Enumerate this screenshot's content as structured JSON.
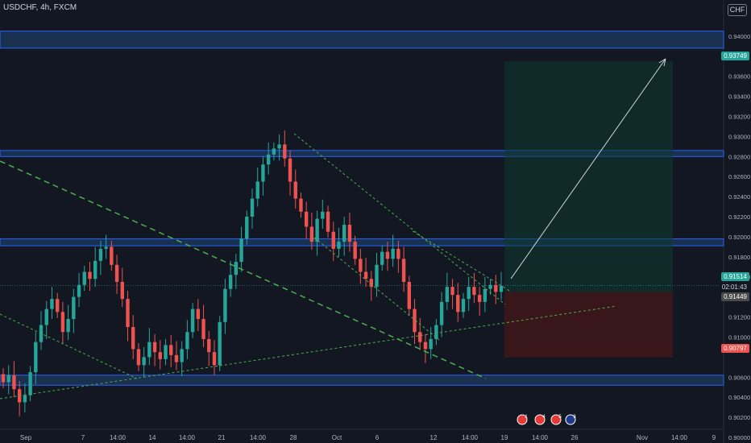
{
  "header": {
    "symbol_line": "USDCHF, 4h, FXCM",
    "currency_button": "CHF"
  },
  "colors": {
    "background": "#131722",
    "up": "#26a69a",
    "down": "#ef5350",
    "zone_fill": "#1e3a5f",
    "zone_border": "#2962ff",
    "trend": "#4caf50",
    "target": "#26a69a",
    "stop": "#ef5350"
  },
  "price_badges": {
    "target": "0.93749",
    "current": "0.91514",
    "countdown": "02:01:43",
    "entry": "0.91449",
    "stop": "0.90797"
  },
  "events": [
    {
      "icon": "flag-ch-icon",
      "count": "1"
    },
    {
      "icon": "flag-ch-icon",
      "count": "4"
    },
    {
      "icon": "flag-ch-icon",
      "count": "5"
    },
    {
      "icon": "flag-us-icon",
      "count": "3"
    }
  ],
  "chart_data": {
    "type": "candlestick",
    "symbol": "USDCHF",
    "timeframe": "4h",
    "source": "FXCM",
    "ylim": [
      0.9,
      0.9428
    ],
    "y_ticks": [
      "0.94000",
      "0.93600",
      "0.93400",
      "0.93200",
      "0.93000",
      "0.92800",
      "0.92600",
      "0.92400",
      "0.92200",
      "0.92000",
      "0.91800",
      "0.91600",
      "0.91200",
      "0.91000",
      "0.90600",
      "0.90400",
      "0.90200",
      "0.90000"
    ],
    "x_ticks": [
      "Sep",
      "7",
      "14:00",
      "14",
      "14:00",
      "21",
      "14:00",
      "28",
      "Oct",
      "6",
      "12",
      "14:00",
      "19",
      "14:00",
      "26",
      "Nov",
      "14:00",
      "9"
    ],
    "candle_path_closes": [
      0.9055,
      0.9062,
      0.9048,
      0.9035,
      0.9042,
      0.9065,
      0.9095,
      0.9112,
      0.9128,
      0.9138,
      0.9125,
      0.9105,
      0.9118,
      0.914,
      0.9152,
      0.9165,
      0.9158,
      0.9176,
      0.9188,
      0.919,
      0.9172,
      0.9155,
      0.9138,
      0.911,
      0.9088,
      0.9072,
      0.908,
      0.9095,
      0.9085,
      0.9078,
      0.9092,
      0.9082,
      0.9075,
      0.9088,
      0.9105,
      0.9128,
      0.9118,
      0.9098,
      0.9085,
      0.9072,
      0.9115,
      0.9148,
      0.9162,
      0.9175,
      0.9198,
      0.922,
      0.9238,
      0.9255,
      0.9272,
      0.9282,
      0.9288,
      0.9292,
      0.9278,
      0.9255,
      0.9238,
      0.9225,
      0.921,
      0.9195,
      0.9218,
      0.9225,
      0.9205,
      0.9188,
      0.9195,
      0.9212,
      0.9195,
      0.9178,
      0.9165,
      0.9158,
      0.915,
      0.9172,
      0.9185,
      0.9178,
      0.9188,
      0.9178,
      0.9155,
      0.9128,
      0.9105,
      0.9095,
      0.9088,
      0.9098,
      0.9112,
      0.9135,
      0.915,
      0.9142,
      0.9125,
      0.9138,
      0.915,
      0.9142,
      0.9135,
      0.9148,
      0.9152,
      0.9145,
      0.9151
    ],
    "horizontal_zones": [
      [
        0.9388,
        0.9405
      ],
      [
        0.928,
        0.9286
      ],
      [
        0.9191,
        0.9198
      ],
      [
        0.9052,
        0.9062
      ]
    ],
    "trend_lines": [
      {
        "from": [
          0.9268,
          "start"
        ],
        "to": [
          0.9048,
          "Oct 19"
        ],
        "style": "dashed"
      },
      {
        "from": [
          0.9302,
          "Sep 28"
        ],
        "to": [
          0.9132,
          "Oct 19"
        ],
        "style": "dashed"
      },
      {
        "from": [
          0.9198,
          "Oct 9"
        ],
        "to": [
          0.9135,
          "Oct 19"
        ],
        "style": "dashed"
      },
      {
        "from": [
          0.9045,
          "start"
        ],
        "to": [
          0.9128,
          "Oct 26"
        ],
        "style": "dashed"
      }
    ],
    "position": {
      "type": "long",
      "entry": 0.91449,
      "target": 0.93749,
      "stop": 0.90797
    }
  }
}
